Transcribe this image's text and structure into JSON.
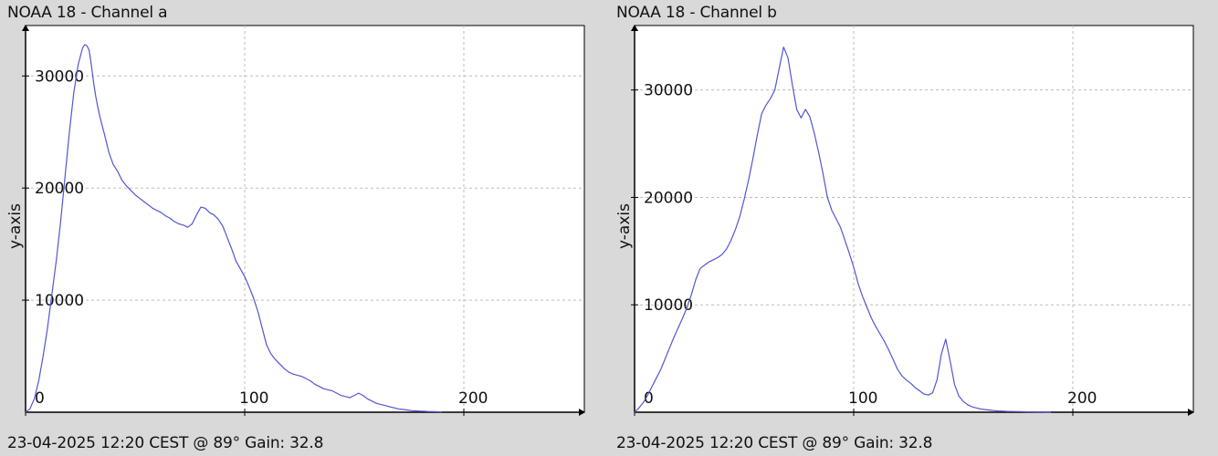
{
  "colors": {
    "background": "#d9d9d9",
    "plot_bg": "#ffffff",
    "line": "#5555d0",
    "grid": "#bdbdbd",
    "axis": "#000000"
  },
  "chart_data": [
    {
      "type": "line",
      "title": "NOAA 18 - Channel a",
      "footer": "23-04-2025 12:20 CEST @ 89° Gain: 32.8",
      "xlabel": "",
      "ylabel": "y-axis",
      "xlim": [
        0,
        255
      ],
      "ylim": [
        0,
        34500
      ],
      "xticks": [
        0,
        100,
        200
      ],
      "xtick_labels": [
        "0",
        "100",
        "200"
      ],
      "yticks": [
        10000,
        20000,
        30000
      ],
      "ytick_labels": [
        "10000",
        "20000",
        "30000"
      ],
      "grid": true,
      "series": [
        {
          "x": [
            0,
            2,
            4,
            6,
            8,
            10,
            12,
            14,
            16,
            18,
            20,
            22,
            24,
            26,
            27,
            28,
            29,
            30,
            31,
            32,
            33,
            34,
            36,
            38,
            40,
            42,
            44,
            46,
            48,
            50,
            52,
            54,
            56,
            58,
            60,
            62,
            64,
            66,
            68,
            70,
            72,
            74,
            76,
            78,
            80,
            82,
            84,
            86,
            88,
            90,
            92,
            94,
            96,
            98,
            100,
            102,
            104,
            106,
            108,
            110,
            112,
            114,
            116,
            118,
            120,
            122,
            124,
            126,
            128,
            130,
            132,
            134,
            136,
            138,
            140,
            142,
            144,
            146,
            148,
            150,
            152,
            154,
            156,
            158,
            160,
            162,
            164,
            166,
            168,
            170,
            172,
            174,
            176,
            178,
            180,
            182,
            184,
            186,
            188,
            190
          ],
          "y": [
            0,
            300,
            1200,
            2800,
            5000,
            7500,
            10500,
            13500,
            17000,
            21000,
            25000,
            28500,
            31000,
            32500,
            32800,
            32700,
            32300,
            31000,
            29500,
            28200,
            27200,
            26300,
            24800,
            23200,
            22100,
            21500,
            20700,
            20200,
            19800,
            19400,
            19100,
            18800,
            18500,
            18200,
            18000,
            17800,
            17500,
            17300,
            17000,
            16800,
            16700,
            16500,
            16800,
            17600,
            18300,
            18200,
            17800,
            17600,
            17200,
            16600,
            15600,
            14600,
            13500,
            12800,
            12100,
            11200,
            10200,
            9000,
            7500,
            6000,
            5200,
            4700,
            4300,
            3900,
            3600,
            3400,
            3300,
            3200,
            3000,
            2800,
            2500,
            2300,
            2100,
            2000,
            1900,
            1700,
            1500,
            1400,
            1300,
            1500,
            1700,
            1500,
            1200,
            1000,
            800,
            700,
            600,
            500,
            400,
            300,
            250,
            200,
            150,
            120,
            100,
            80,
            60,
            50,
            40,
            30
          ]
        }
      ]
    },
    {
      "type": "line",
      "title": "NOAA 18 - Channel b",
      "footer": "23-04-2025 12:20 CEST @ 89° Gain: 32.8",
      "xlabel": "",
      "ylabel": "y-axis",
      "xlim": [
        0,
        255
      ],
      "ylim": [
        0,
        36000
      ],
      "xticks": [
        0,
        100,
        200
      ],
      "xtick_labels": [
        "0",
        "100",
        "200"
      ],
      "yticks": [
        10000,
        20000,
        30000
      ],
      "ytick_labels": [
        "10000",
        "20000",
        "30000"
      ],
      "grid": true,
      "series": [
        {
          "x": [
            0,
            2,
            4,
            6,
            8,
            10,
            12,
            14,
            16,
            18,
            20,
            22,
            24,
            26,
            28,
            30,
            32,
            34,
            36,
            38,
            40,
            42,
            44,
            46,
            48,
            50,
            52,
            54,
            56,
            58,
            60,
            62,
            64,
            66,
            68,
            70,
            72,
            74,
            76,
            78,
            80,
            82,
            84,
            86,
            88,
            90,
            92,
            94,
            96,
            98,
            100,
            102,
            104,
            106,
            108,
            110,
            112,
            114,
            116,
            118,
            120,
            122,
            124,
            126,
            128,
            130,
            132,
            134,
            136,
            138,
            140,
            142,
            144,
            146,
            148,
            150,
            152,
            154,
            156,
            158,
            160,
            162,
            164,
            166,
            168,
            170,
            172,
            174,
            176,
            178,
            180,
            182,
            184,
            186,
            188,
            190
          ],
          "y": [
            0,
            400,
            900,
            1600,
            2400,
            3200,
            4000,
            5000,
            6000,
            7000,
            7900,
            8800,
            9800,
            11000,
            12400,
            13400,
            13700,
            14000,
            14200,
            14400,
            14700,
            15200,
            16000,
            17000,
            18200,
            19800,
            21600,
            23600,
            25800,
            27800,
            28600,
            29200,
            30000,
            32000,
            34000,
            33000,
            30500,
            28200,
            27400,
            28200,
            27500,
            26000,
            24200,
            22200,
            20000,
            18800,
            18000,
            17200,
            16000,
            14800,
            13500,
            12000,
            10800,
            9800,
            8800,
            8000,
            7300,
            6600,
            5800,
            4900,
            4000,
            3400,
            3000,
            2700,
            2300,
            2000,
            1700,
            1600,
            1800,
            3000,
            5400,
            6800,
            4800,
            2600,
            1500,
            1000,
            700,
            500,
            400,
            300,
            250,
            200,
            150,
            120,
            100,
            80,
            70,
            60,
            50,
            40,
            30,
            25,
            20,
            15,
            10,
            5
          ]
        }
      ]
    }
  ]
}
